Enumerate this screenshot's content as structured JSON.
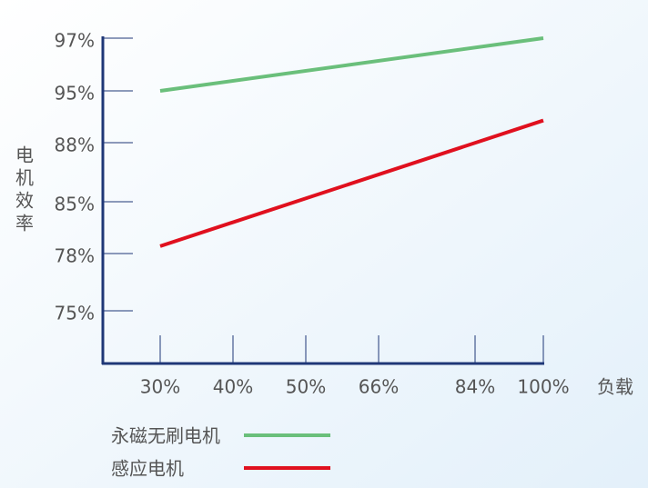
{
  "chart_data": {
    "type": "line",
    "y_label": "电机效率",
    "x_label": "负载",
    "xticks": [
      {
        "value": 30,
        "label": "30%"
      },
      {
        "value": 40,
        "label": "40%"
      },
      {
        "value": 50,
        "label": "50%"
      },
      {
        "value": 66,
        "label": "66%"
      },
      {
        "value": 84,
        "label": "84%"
      },
      {
        "value": 100,
        "label": "100%"
      }
    ],
    "yticks": [
      {
        "value": 97,
        "label": "97%"
      },
      {
        "value": 95,
        "label": "95%"
      },
      {
        "value": 88,
        "label": "88%"
      },
      {
        "value": 85,
        "label": "85%"
      },
      {
        "value": 78,
        "label": "78%"
      },
      {
        "value": 75,
        "label": "75%"
      }
    ],
    "series": [
      {
        "name": "永磁无刷电机",
        "color": "#6abf7b",
        "x": [
          30,
          100
        ],
        "values": [
          95,
          97
        ]
      },
      {
        "name": "感应电机",
        "color": "#e0101e",
        "x": [
          30,
          100
        ],
        "values": [
          79,
          91
        ]
      }
    ]
  }
}
